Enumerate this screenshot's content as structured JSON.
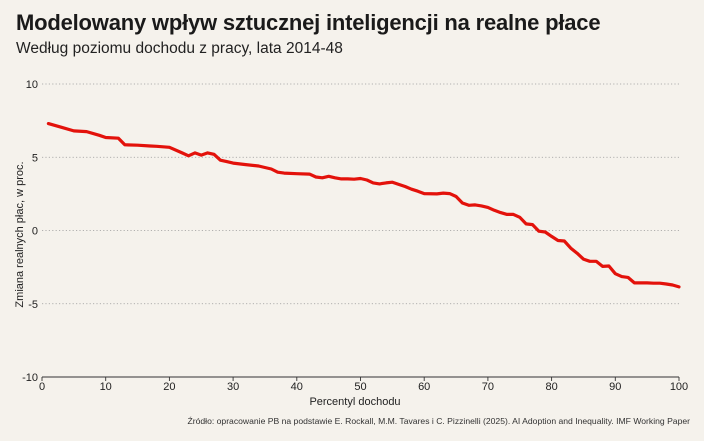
{
  "title": "Modelowany wpływ sztucznej inteligencji na realne płace",
  "subtitle": "Według poziomu dochodu z pracy, lata 2014-48",
  "source": "Źródło: opracowanie PB na podstawie E. Rockall, M.M. Tavares i C. Pizzinelli (2025). AI Adoption and Inequality. IMF Working Paper",
  "chart_data": {
    "type": "line",
    "xlabel": "Percentyl dochodu",
    "ylabel": "Zmiana realnych płac, w proc.",
    "xlim": [
      0,
      100
    ],
    "ylim": [
      -10,
      10
    ],
    "xticks": [
      0,
      10,
      20,
      30,
      40,
      50,
      60,
      70,
      80,
      90,
      100
    ],
    "yticks": [
      10,
      5,
      0,
      -5,
      -10
    ],
    "grid": "horizontal-dotted",
    "line_color": "#e3120b",
    "series": [
      {
        "x": [
          1,
          3,
          5,
          7,
          9,
          10,
          12,
          13,
          15,
          17,
          18,
          20,
          22,
          23,
          24,
          25,
          26,
          27,
          28,
          29,
          30,
          32,
          34,
          35,
          36,
          37,
          38,
          40,
          42,
          43,
          44,
          45,
          46,
          47,
          48,
          49,
          50,
          51,
          52,
          53,
          54,
          55,
          56,
          57,
          58,
          59,
          60,
          62,
          63,
          64,
          65,
          66,
          67,
          68,
          69,
          70,
          71,
          72,
          73,
          74,
          75,
          76,
          77,
          78,
          79,
          80,
          81,
          82,
          83,
          84,
          85,
          86,
          87,
          88,
          89,
          90,
          91,
          92,
          93,
          95,
          96,
          97,
          98,
          99,
          100
        ],
        "values": [
          7.3,
          7.05,
          6.8,
          6.75,
          6.5,
          6.35,
          6.3,
          5.85,
          5.82,
          5.77,
          5.75,
          5.68,
          5.3,
          5.1,
          5.3,
          5.15,
          5.3,
          5.2,
          4.8,
          4.7,
          4.6,
          4.5,
          4.4,
          4.3,
          4.2,
          3.98,
          3.92,
          3.88,
          3.85,
          3.65,
          3.6,
          3.7,
          3.6,
          3.52,
          3.52,
          3.5,
          3.55,
          3.45,
          3.25,
          3.18,
          3.25,
          3.3,
          3.15,
          3.0,
          2.82,
          2.68,
          2.52,
          2.5,
          2.55,
          2.52,
          2.32,
          1.88,
          1.72,
          1.75,
          1.68,
          1.58,
          1.38,
          1.22,
          1.1,
          1.1,
          0.9,
          0.45,
          0.4,
          -0.05,
          -0.1,
          -0.4,
          -0.68,
          -0.72,
          -1.2,
          -1.55,
          -1.95,
          -2.1,
          -2.1,
          -2.45,
          -2.42,
          -2.95,
          -3.15,
          -3.2,
          -3.58,
          -3.58,
          -3.6,
          -3.6,
          -3.65,
          -3.72,
          -3.85
        ]
      }
    ]
  }
}
